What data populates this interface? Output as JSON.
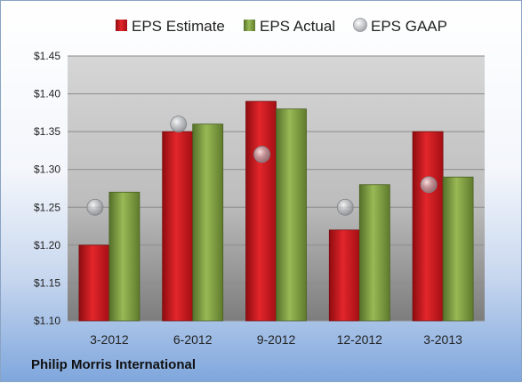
{
  "company_label": "Philip Morris International",
  "chart_data": {
    "type": "bar",
    "categories": [
      "3-2012",
      "6-2012",
      "9-2012",
      "12-2012",
      "3-2013"
    ],
    "series": [
      {
        "name": "EPS Estimate",
        "type": "bar",
        "color": "#c8191e",
        "values": [
          1.2,
          1.35,
          1.39,
          1.22,
          1.35
        ]
      },
      {
        "name": "EPS Actual",
        "type": "bar",
        "color": "#7a9a3a",
        "values": [
          1.27,
          1.36,
          1.38,
          1.28,
          1.29
        ]
      },
      {
        "name": "EPS GAAP",
        "type": "marker",
        "color": "#b8bcc2",
        "values": [
          1.25,
          1.36,
          1.32,
          1.25,
          1.28
        ]
      }
    ],
    "yticks": [
      "$1.10",
      "$1.15",
      "$1.20",
      "$1.25",
      "$1.30",
      "$1.35",
      "$1.40",
      "$1.45"
    ],
    "ylim": [
      1.1,
      1.45
    ],
    "grid": true,
    "legend": "top"
  }
}
